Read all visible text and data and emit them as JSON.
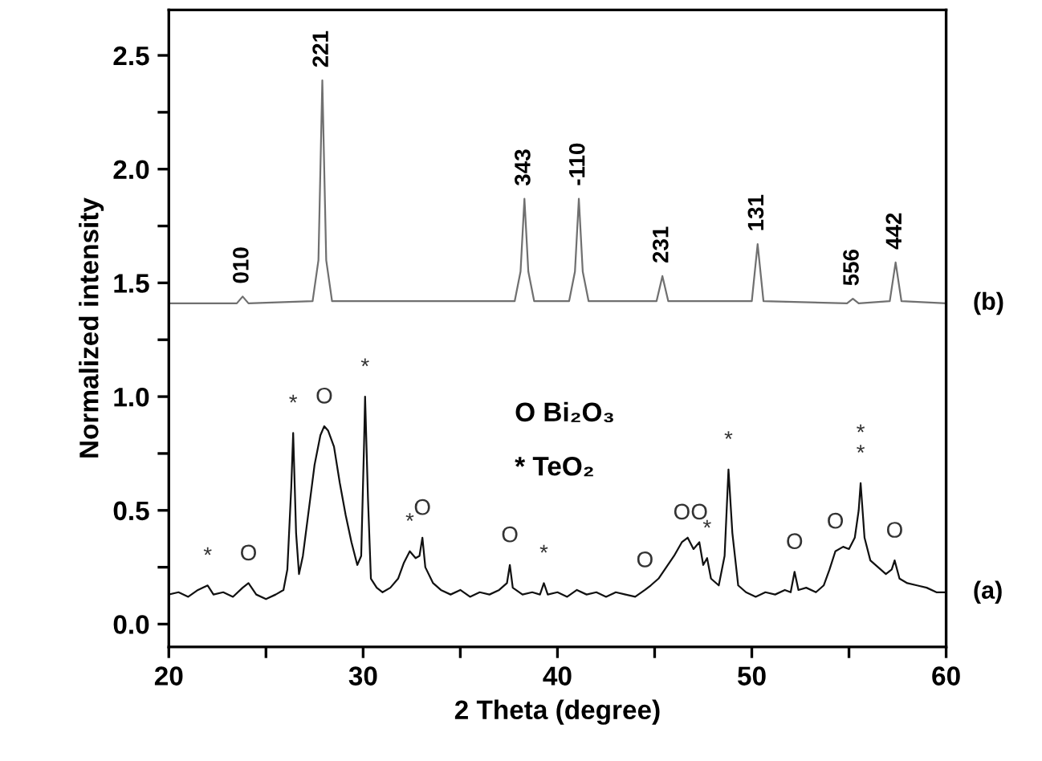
{
  "chart_data": {
    "type": "line",
    "xlabel": "2 Theta (degree)",
    "ylabel": "Normalized intensity",
    "xlim": [
      20,
      60
    ],
    "ylim": [
      -0.1,
      2.7
    ],
    "xticks": [
      20,
      {
        "value": 25,
        "label": null
      },
      30,
      {
        "value": 35,
        "label": null
      },
      40,
      {
        "value": 45,
        "label": null
      },
      50,
      {
        "value": 55,
        "label": null
      },
      60
    ],
    "yticks": [
      {
        "value": 0,
        "label": "0.0"
      },
      {
        "value": 0.25,
        "label": null
      },
      0.5,
      {
        "value": 0.75,
        "label": null
      },
      {
        "value": 1,
        "label": "1.0"
      },
      {
        "value": 1.25,
        "label": null
      },
      1.5,
      {
        "value": 1.75,
        "label": null
      },
      {
        "value": 2,
        "label": "2.0"
      },
      {
        "value": 2.25,
        "label": null
      },
      2.5
    ],
    "grid": false,
    "legend": false,
    "series": [
      {
        "name": "(b)",
        "color": "#707070",
        "x": [
          20,
          23.5,
          23.8,
          24.1,
          27.4,
          27.7,
          27.9,
          28.1,
          28.4,
          30.3,
          37.8,
          38.1,
          38.3,
          38.5,
          38.8,
          40.6,
          40.9,
          41.1,
          41.3,
          41.6,
          45.1,
          45.4,
          45.7,
          50.0,
          50.3,
          50.6,
          54.9,
          55.2,
          55.5,
          57.1,
          57.4,
          57.7,
          60
        ],
        "values": [
          1.41,
          1.41,
          1.44,
          1.41,
          1.42,
          1.6,
          2.39,
          1.6,
          1.42,
          1.42,
          1.42,
          1.55,
          1.87,
          1.55,
          1.42,
          1.42,
          1.55,
          1.87,
          1.55,
          1.42,
          1.42,
          1.53,
          1.42,
          1.42,
          1.67,
          1.42,
          1.41,
          1.43,
          1.41,
          1.42,
          1.59,
          1.42,
          1.41
        ]
      },
      {
        "name": "(a)",
        "color": "#111111",
        "x": [
          20.0,
          20.5,
          21.0,
          21.5,
          22.0,
          22.3,
          22.8,
          23.3,
          23.8,
          24.1,
          24.5,
          25.0,
          25.5,
          25.9,
          26.1,
          26.3,
          26.4,
          26.55,
          26.7,
          26.9,
          27.2,
          27.5,
          27.8,
          28.0,
          28.2,
          28.5,
          28.8,
          29.1,
          29.4,
          29.7,
          29.9,
          30.05,
          30.1,
          30.25,
          30.4,
          30.7,
          31.0,
          31.4,
          31.8,
          32.1,
          32.4,
          32.7,
          32.9,
          33.05,
          33.2,
          33.6,
          34.0,
          34.5,
          35.0,
          35.5,
          36.0,
          36.5,
          37.0,
          37.4,
          37.55,
          37.7,
          38.2,
          38.7,
          39.1,
          39.3,
          39.5,
          40.0,
          40.5,
          41.0,
          41.5,
          42.0,
          42.5,
          43.0,
          43.5,
          44.0,
          44.5,
          44.8,
          45.2,
          45.6,
          46.0,
          46.4,
          46.7,
          47.0,
          47.3,
          47.5,
          47.7,
          47.9,
          48.3,
          48.6,
          48.8,
          49.0,
          49.3,
          49.7,
          50.2,
          50.7,
          51.2,
          51.7,
          52.0,
          52.2,
          52.4,
          52.8,
          53.3,
          53.7,
          54.0,
          54.3,
          54.7,
          55.0,
          55.3,
          55.5,
          55.6,
          55.8,
          56.1,
          56.5,
          56.9,
          57.2,
          57.35,
          57.6,
          58.0,
          58.5,
          59.0,
          59.5,
          60.0
        ],
        "values": [
          0.13,
          0.14,
          0.12,
          0.15,
          0.17,
          0.13,
          0.14,
          0.12,
          0.16,
          0.18,
          0.13,
          0.11,
          0.13,
          0.15,
          0.24,
          0.6,
          0.84,
          0.4,
          0.22,
          0.3,
          0.5,
          0.7,
          0.83,
          0.87,
          0.85,
          0.78,
          0.62,
          0.48,
          0.36,
          0.26,
          0.3,
          0.8,
          1.0,
          0.55,
          0.2,
          0.16,
          0.14,
          0.16,
          0.2,
          0.27,
          0.32,
          0.29,
          0.3,
          0.38,
          0.25,
          0.18,
          0.15,
          0.13,
          0.15,
          0.12,
          0.14,
          0.13,
          0.15,
          0.18,
          0.26,
          0.16,
          0.13,
          0.14,
          0.13,
          0.18,
          0.13,
          0.14,
          0.12,
          0.15,
          0.13,
          0.14,
          0.12,
          0.14,
          0.13,
          0.12,
          0.15,
          0.17,
          0.2,
          0.25,
          0.3,
          0.36,
          0.38,
          0.33,
          0.36,
          0.26,
          0.29,
          0.2,
          0.17,
          0.3,
          0.68,
          0.4,
          0.17,
          0.14,
          0.12,
          0.14,
          0.13,
          0.15,
          0.14,
          0.23,
          0.15,
          0.16,
          0.14,
          0.17,
          0.24,
          0.32,
          0.34,
          0.33,
          0.38,
          0.5,
          0.62,
          0.38,
          0.28,
          0.25,
          0.22,
          0.24,
          0.28,
          0.2,
          0.18,
          0.17,
          0.16,
          0.14,
          0.14
        ]
      }
    ],
    "annotations": [
      {
        "text": "010",
        "x": 23.8,
        "y": 1.44
      },
      {
        "text": "221",
        "x": 27.9,
        "y": 2.39
      },
      {
        "text": "343",
        "x": 38.3,
        "y": 1.87
      },
      {
        "text": "-110",
        "x": 41.1,
        "y": 1.87
      },
      {
        "text": "231",
        "x": 45.4,
        "y": 1.53
      },
      {
        "text": "131",
        "x": 50.3,
        "y": 1.67
      },
      {
        "text": "556",
        "x": 55.2,
        "y": 1.43
      },
      {
        "text": "442",
        "x": 57.4,
        "y": 1.59
      },
      {
        "text": "*",
        "x": 22.0,
        "y": 0.17
      },
      {
        "text": "O",
        "x": 24.1,
        "y": 0.18
      },
      {
        "text": "*",
        "x": 26.4,
        "y": 0.84
      },
      {
        "text": "O",
        "x": 28.0,
        "y": 0.87
      },
      {
        "text": "*",
        "x": 30.1,
        "y": 1.0
      },
      {
        "text": "*",
        "x": 32.4,
        "y": 0.32
      },
      {
        "text": "O",
        "x": 33.05,
        "y": 0.38
      },
      {
        "text": "O",
        "x": 37.55,
        "y": 0.26
      },
      {
        "text": "*",
        "x": 39.3,
        "y": 0.18
      },
      {
        "text": "O",
        "x": 44.5,
        "y": 0.15
      },
      {
        "text": "O",
        "x": 46.4,
        "y": 0.36
      },
      {
        "text": "O",
        "x": 47.3,
        "y": 0.36
      },
      {
        "text": "*",
        "x": 47.7,
        "y": 0.29
      },
      {
        "text": "*",
        "x": 48.8,
        "y": 0.68
      },
      {
        "text": "O",
        "x": 52.2,
        "y": 0.23
      },
      {
        "text": "O",
        "x": 54.3,
        "y": 0.32
      },
      {
        "text": "*",
        "x": 55.6,
        "y": 0.62
      },
      {
        "text": "*",
        "x": 55.6,
        "y": 0.62
      },
      {
        "text": "O",
        "x": 57.35,
        "y": 0.28
      },
      "O Bi₂O₃",
      "* TeO₂"
    ]
  }
}
